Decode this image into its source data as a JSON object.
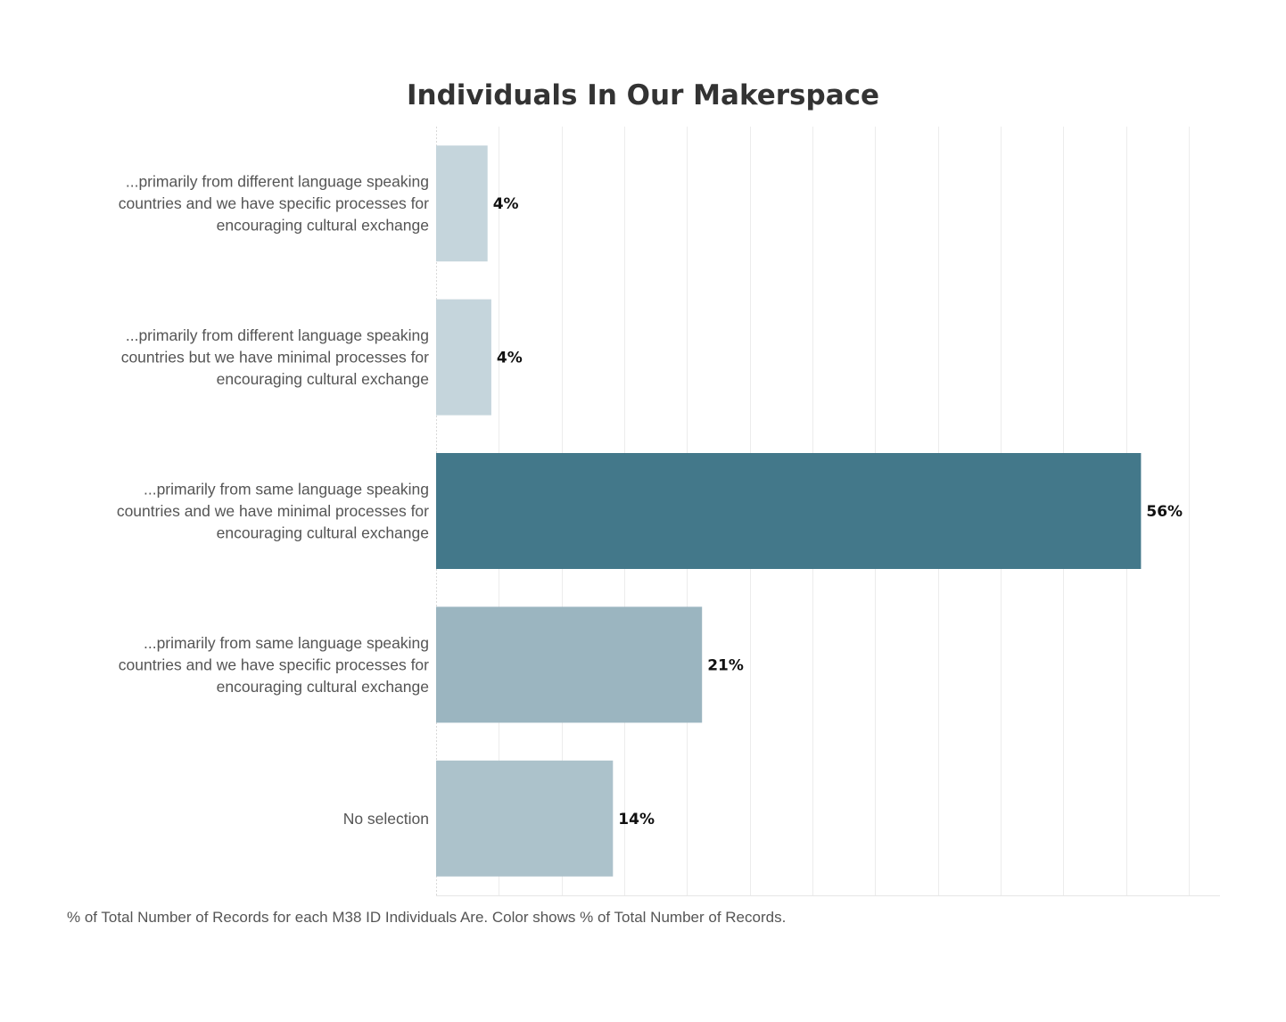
{
  "chart_data": {
    "type": "bar",
    "orientation": "horizontal",
    "title": "Individuals In Our Makerspace",
    "categories": [
      "...primarily from different language speaking countries and we have specific processes for encouraging cultural exchange",
      "...primarily from different language speaking countries but we have minimal processes for encouraging cultural exchange",
      "...primarily from same language speaking countries and we have minimal processes for encouraging cultural exchange",
      "...primarily from same language speaking countries and we have specific processes for encouraging cultural exchange",
      "No selection"
    ],
    "category_lines": [
      [
        "...primarily from different language speaking",
        "countries and we have specific processes for",
        "encouraging cultural exchange"
      ],
      [
        "...primarily from different language speaking",
        "countries but we have minimal processes for",
        "encouraging cultural exchange"
      ],
      [
        "...primarily from same language speaking",
        "countries and we have minimal processes for",
        "encouraging cultural exchange"
      ],
      [
        "...primarily from same language speaking",
        "countries and we have specific processes for",
        "encouraging cultural exchange"
      ],
      [
        "No selection"
      ]
    ],
    "values": [
      4.1,
      4.4,
      56.2,
      21.2,
      14.1
    ],
    "value_labels": [
      "4%",
      "4%",
      "56%",
      "21%",
      "14%"
    ],
    "colors": [
      "#c5d5dc",
      "#c5d5dc",
      "#43788a",
      "#9bb5c0",
      "#acc2cb"
    ],
    "xlim": [
      0,
      62.5
    ],
    "x_gridlines": [
      5,
      10,
      15,
      20,
      25,
      30,
      35,
      40,
      45,
      50,
      55,
      60
    ],
    "grid": true,
    "xlabel": "",
    "ylabel": "",
    "footnote": "% of Total Number of Records for each M38 ID Individuals Are.  Color shows % of Total Number of Records."
  }
}
